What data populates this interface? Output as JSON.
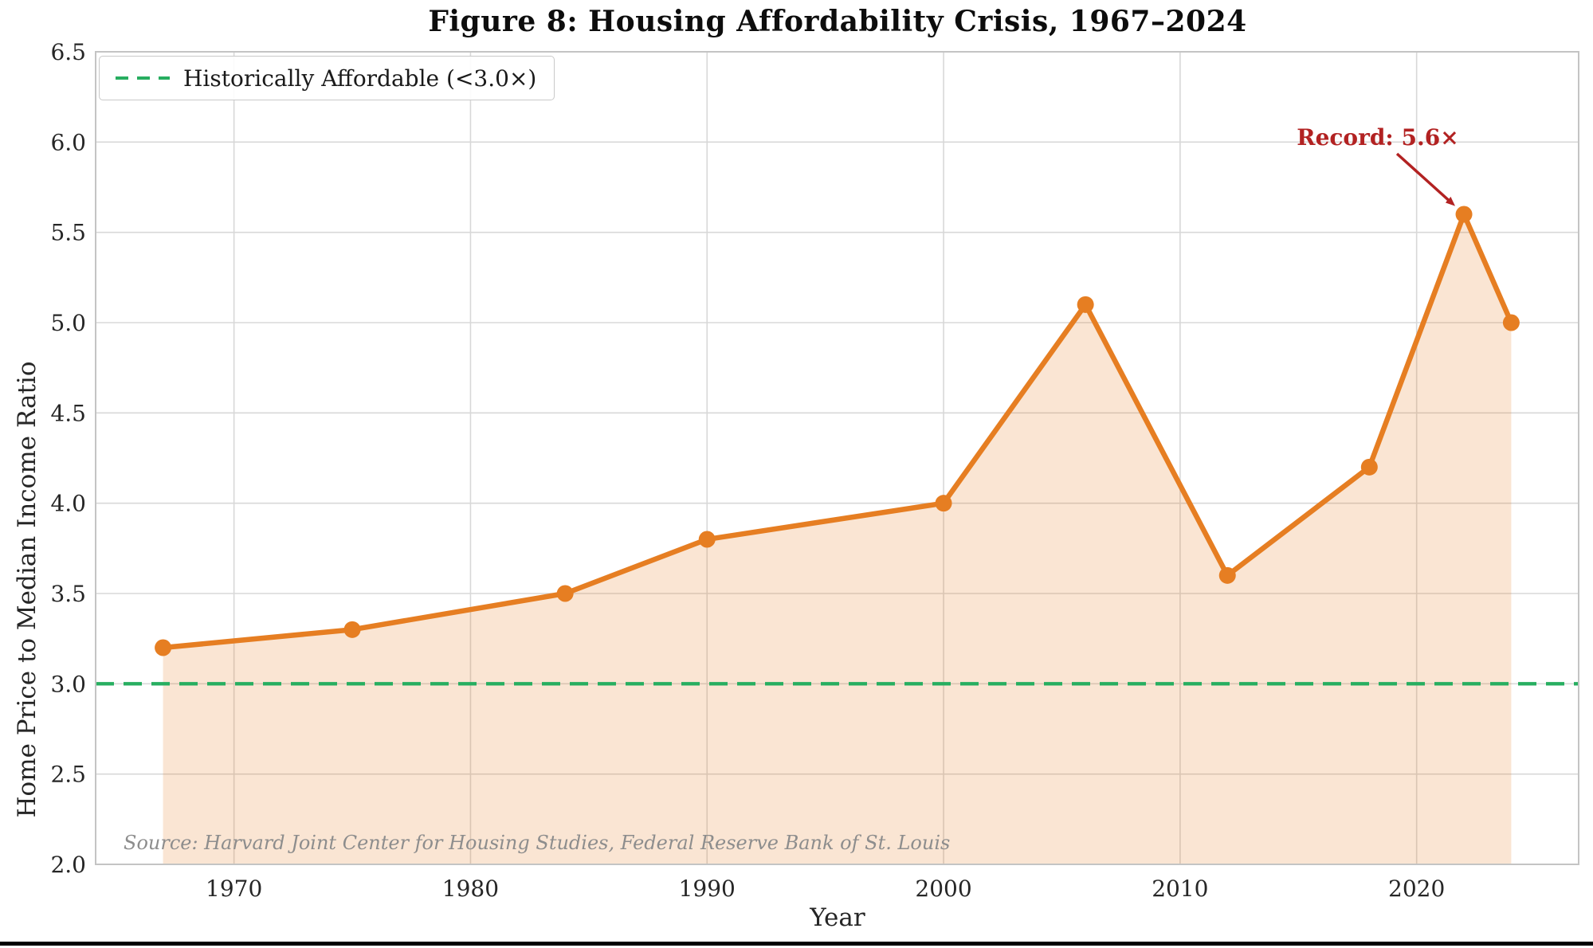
{
  "chart_data": {
    "type": "line",
    "title": "Figure 8: Housing Affordability Crisis, 1967–2024",
    "xlabel": "Year",
    "ylabel": "Home Price to Median Income Ratio",
    "x": [
      1967,
      1975,
      1984,
      1990,
      2000,
      2006,
      2012,
      2018,
      2022,
      2024
    ],
    "series": [
      {
        "name": "Home price to median income ratio",
        "values": [
          3.2,
          3.3,
          3.5,
          3.8,
          4.0,
          5.1,
          3.6,
          4.2,
          5.6,
          5.0
        ]
      }
    ],
    "xlim": [
      1964.15,
      2026.85
    ],
    "ylim": [
      2.0,
      6.5
    ],
    "xticks": [
      1970,
      1980,
      1990,
      2000,
      2010,
      2020
    ],
    "yticks": [
      2.0,
      2.5,
      3.0,
      3.5,
      4.0,
      4.5,
      5.0,
      5.5,
      6.0,
      6.5
    ],
    "grid": true,
    "area_fill": true,
    "legend_position": "upper-left",
    "threshold": {
      "value": 3.0,
      "label": "Historically Affordable (<3.0×)"
    },
    "annotation": {
      "text": "Record: 5.6×",
      "target_x": 2022,
      "target_y": 5.6
    },
    "source_note": "Source: Harvard Joint Center for Housing Studies, Federal Reserve Bank of St. Louis",
    "colors": {
      "line": "#e67e22",
      "fill": "rgba(230,126,34,0.2)",
      "threshold": "#27ae60",
      "annotation": "#b22222",
      "grid": "#d8d8d8",
      "spine": "#c4c4c4",
      "tick_text": "#262626",
      "source_text": "#8d8d8d",
      "background": "#ffffff",
      "bottom_bar": "#000000"
    }
  }
}
